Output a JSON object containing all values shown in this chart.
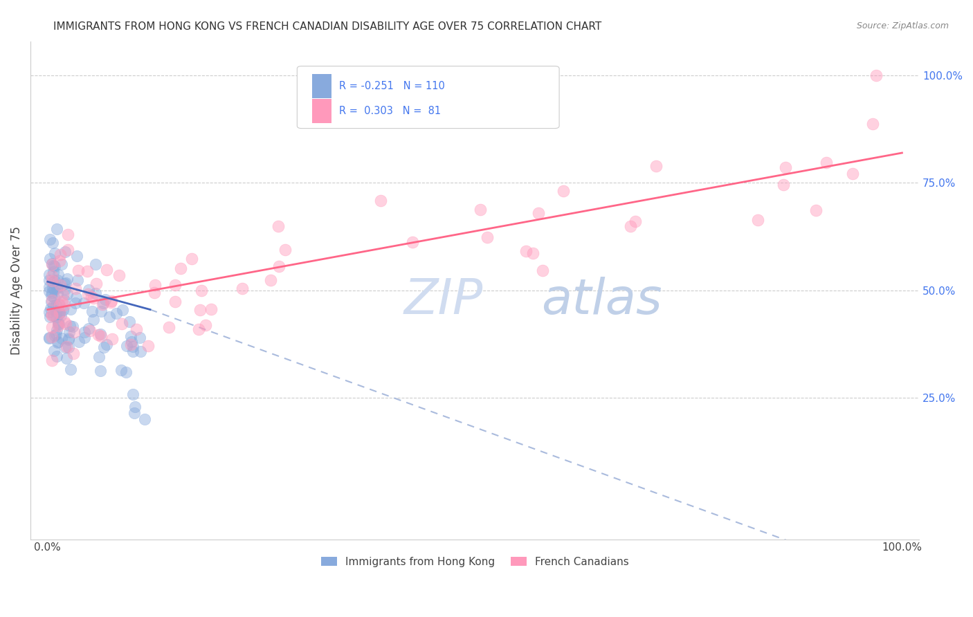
{
  "title": "IMMIGRANTS FROM HONG KONG VS FRENCH CANADIAN DISABILITY AGE OVER 75 CORRELATION CHART",
  "source": "Source: ZipAtlas.com",
  "ylabel": "Disability Age Over 75",
  "legend_label1": "Immigrants from Hong Kong",
  "legend_label2": "French Canadians",
  "R1": -0.251,
  "N1": 110,
  "R2": 0.303,
  "N2": 81,
  "color_blue": "#88AADD",
  "color_pink": "#FF99BB",
  "color_blue_line": "#4466BB",
  "color_pink_line": "#FF6688",
  "color_blue_dash": "#AABBDD",
  "color_label": "#4477EE",
  "background": "#FFFFFF",
  "xlim": [
    0.0,
    1.0
  ],
  "ylim": [
    0.0,
    1.05
  ],
  "yticks": [
    0.25,
    0.5,
    0.75,
    1.0
  ],
  "ytick_labels": [
    "25.0%",
    "50.0%",
    "75.0%",
    "100.0%"
  ],
  "xticks": [
    0.0,
    1.0
  ],
  "xtick_labels": [
    "0.0%",
    "100.0%"
  ],
  "pink_trend": [
    0.0,
    0.455,
    1.0,
    0.82
  ],
  "blue_trend_solid": [
    0.0,
    0.52,
    0.12,
    0.455
  ],
  "blue_trend_dash": [
    0.12,
    0.455,
    1.0,
    -0.18
  ],
  "watermark": "ZIPatlas",
  "watermark_zip_color": "#D8E8F8",
  "watermark_atlas_color": "#B8C8E8"
}
